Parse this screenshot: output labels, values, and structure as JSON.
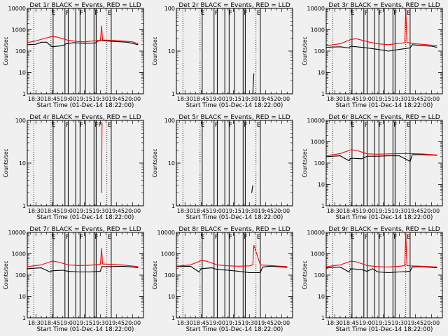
{
  "figure": {
    "background": "#f0f0f0",
    "ink_color": "#000000",
    "events_color": "#000000",
    "lld_color": "#ff0000"
  },
  "chart_data": [
    {
      "type": "line",
      "title": "Det 1r BLACK = Events, RED = LLD",
      "xlabel": "Start Time (01-Dec-14 18:22:00)",
      "ylabel": "Counts/sec",
      "x_ticks": [
        "18:30",
        "18:45",
        "19:00",
        "19:15",
        "19:30",
        "19:45",
        "20:00"
      ],
      "y_ticks": [
        "1",
        "10",
        "100",
        "1000",
        "10000"
      ],
      "ylim": [
        1,
        10000
      ],
      "y_scale": "log",
      "time_range": [
        "18:22",
        "20:10"
      ],
      "markers": [
        "E",
        "F",
        "F",
        "F",
        "E"
      ],
      "series": [
        {
          "color": "#000000",
          "x": [
            "18:22",
            "18:30",
            "18:35",
            "18:40",
            "18:43",
            "18:45",
            "18:55",
            "18:58",
            "19:05",
            "19:15",
            "19:25",
            "19:28",
            "19:30",
            "19:35",
            "19:45",
            "19:55",
            "20:05"
          ],
          "y": [
            200,
            210,
            260,
            260,
            190,
            160,
            180,
            220,
            250,
            230,
            240,
            300,
            310,
            300,
            280,
            260,
            200
          ]
        },
        {
          "color": "#ff0000",
          "x": [
            "18:22",
            "18:30",
            "18:40",
            "18:45",
            "18:50",
            "18:55",
            "19:00",
            "19:10",
            "19:15",
            "19:20",
            "19:30",
            "19:31",
            "19:32",
            "19:40",
            "19:50",
            "20:00",
            "20:05"
          ],
          "y": [
            250,
            300,
            420,
            480,
            450,
            380,
            320,
            280,
            270,
            290,
            320,
            1500,
            330,
            320,
            300,
            270,
            220
          ]
        }
      ]
    },
    {
      "type": "line",
      "title": "Det 2r BLACK = Events, RED = LLD",
      "xlabel": "Start Time (01-Dec-14 18:22:00)",
      "ylabel": "Counts/sec",
      "x_ticks": [
        "18:30",
        "18:45",
        "19:00",
        "19:15",
        "19:30",
        "19:45",
        "20:00"
      ],
      "y_ticks": [
        "1",
        "10",
        "100"
      ],
      "ylim": [
        1,
        100
      ],
      "y_scale": "log",
      "time_range": [
        "18:22",
        "20:10"
      ],
      "markers": [
        "E",
        "F",
        "F",
        "F",
        "E"
      ],
      "series": [
        {
          "color": "#000000",
          "x": [
            "19:33",
            "19:34"
          ],
          "y": [
            1,
            3
          ]
        }
      ]
    },
    {
      "type": "line",
      "title": "Det 3r BLACK = Events, RED = LLD",
      "xlabel": "Start Time (01-Dec-14 18:22:00)",
      "ylabel": "Counts/sec",
      "x_ticks": [
        "18:30",
        "18:45",
        "19:00",
        "19:15",
        "19:30",
        "19:45",
        "20:00"
      ],
      "y_ticks": [
        "1",
        "10",
        "100",
        "1000",
        "10000"
      ],
      "ylim": [
        1,
        10000
      ],
      "y_scale": "log",
      "time_range": [
        "18:22",
        "20:10"
      ],
      "markers": [
        "E",
        "F",
        "F",
        "F",
        "E"
      ],
      "series": [
        {
          "color": "#000000",
          "x": [
            "18:22",
            "18:35",
            "18:43",
            "18:45",
            "18:55",
            "19:00",
            "19:10",
            "19:20",
            "19:30",
            "19:40",
            "19:42",
            "19:50",
            "20:00",
            "20:05"
          ],
          "y": [
            150,
            160,
            140,
            170,
            150,
            140,
            120,
            100,
            120,
            140,
            200,
            180,
            170,
            150
          ]
        },
        {
          "color": "#ff0000",
          "x": [
            "18:22",
            "18:35",
            "18:45",
            "18:50",
            "19:00",
            "19:10",
            "19:20",
            "19:30",
            "19:35",
            "19:36",
            "19:37",
            "19:40",
            "19:45",
            "19:55",
            "20:05"
          ],
          "y": [
            180,
            220,
            350,
            380,
            280,
            220,
            200,
            230,
            250,
            10000,
            260,
            240,
            220,
            200,
            180
          ]
        }
      ]
    },
    {
      "type": "line",
      "title": "Det 4r BLACK = Events, RED = LLD",
      "xlabel": "Start Time (01-Dec-14 18:22:00)",
      "ylabel": "Counts/sec",
      "x_ticks": [
        "18:30",
        "18:45",
        "19:00",
        "19:15",
        "19:30",
        "19:45",
        "20:00"
      ],
      "y_ticks": [
        "1",
        "10",
        "100"
      ],
      "ylim": [
        1,
        100
      ],
      "y_scale": "log",
      "time_range": [
        "18:22",
        "20:10"
      ],
      "markers": [
        "E",
        "F",
        "F",
        "FF",
        "E"
      ],
      "series": [
        {
          "color": "#ff0000",
          "x": [
            "19:31",
            "19:31.5"
          ],
          "y": [
            2,
            90
          ]
        }
      ]
    },
    {
      "type": "line",
      "title": "Det 5r BLACK = Events, RED = LLD",
      "xlabel": "Start Time (01-Dec-14 18:22:00)",
      "ylabel": "Counts/sec",
      "x_ticks": [
        "18:30",
        "18:45",
        "19:00",
        "19:15",
        "19:30",
        "19:45",
        "20:00"
      ],
      "y_ticks": [
        "1",
        "10",
        "100"
      ],
      "ylim": [
        1,
        100
      ],
      "y_scale": "log",
      "time_range": [
        "18:22",
        "20:10"
      ],
      "markers": [
        "E",
        "F",
        "F",
        "F",
        "E"
      ],
      "series": [
        {
          "color": "#000000",
          "x": [
            "19:32",
            "19:33"
          ],
          "y": [
            2,
            3
          ]
        }
      ]
    },
    {
      "type": "line",
      "title": "Det 6r BLACK = Events, RED = LLD",
      "xlabel": "Start Time (01-Dec-14 18:22:00)",
      "ylabel": "Counts/sec",
      "x_ticks": [
        "18:30",
        "18:45",
        "19:00",
        "19:15",
        "19:30",
        "19:45",
        "20:00"
      ],
      "y_ticks": [
        "1",
        "10",
        "100",
        "1000",
        "10000"
      ],
      "ylim": [
        1,
        10000
      ],
      "y_scale": "log",
      "time_range": [
        "18:22",
        "20:10"
      ],
      "markers": [
        "E",
        "F",
        "F",
        "F",
        "E"
      ],
      "series": [
        {
          "color": "#000000",
          "x": [
            "18:22",
            "18:35",
            "18:43",
            "18:45",
            "18:55",
            "19:00",
            "19:10",
            "19:20",
            "19:30",
            "19:40",
            "19:42",
            "19:50",
            "20:00",
            "20:05"
          ],
          "y": [
            200,
            220,
            130,
            170,
            160,
            210,
            210,
            220,
            220,
            120,
            250,
            250,
            240,
            230
          ]
        },
        {
          "color": "#ff0000",
          "x": [
            "18:22",
            "18:35",
            "18:45",
            "18:50",
            "19:00",
            "19:10",
            "19:20",
            "19:30",
            "19:40",
            "19:50",
            "20:05"
          ],
          "y": [
            220,
            280,
            420,
            400,
            270,
            260,
            270,
            280,
            280,
            270,
            240
          ]
        }
      ]
    },
    {
      "type": "line",
      "title": "Det 7r BLACK = Events, RED = LLD",
      "xlabel": "Start Time (01-Dec-14 18:22:00)",
      "ylabel": "Counts/sec",
      "x_ticks": [
        "18:30",
        "18:45",
        "19:00",
        "19:15",
        "19:30",
        "19:45",
        "20:00"
      ],
      "y_ticks": [
        "1",
        "10",
        "100",
        "1000",
        "10000"
      ],
      "ylim": [
        1,
        10000
      ],
      "y_scale": "log",
      "time_range": [
        "18:22",
        "20:10"
      ],
      "markers": [
        "E",
        "F",
        "F",
        "F",
        "E"
      ],
      "series": [
        {
          "color": "#000000",
          "x": [
            "18:22",
            "18:35",
            "18:43",
            "18:45",
            "18:55",
            "19:00",
            "19:10",
            "19:20",
            "19:30",
            "19:31",
            "19:40",
            "19:50",
            "20:00",
            "20:05"
          ],
          "y": [
            200,
            220,
            140,
            160,
            170,
            150,
            140,
            140,
            150,
            250,
            250,
            260,
            240,
            220
          ]
        },
        {
          "color": "#ff0000",
          "x": [
            "18:22",
            "18:35",
            "18:45",
            "18:50",
            "19:00",
            "19:10",
            "19:20",
            "19:30",
            "19:31",
            "19:32",
            "19:40",
            "19:50",
            "20:05"
          ],
          "y": [
            250,
            300,
            450,
            420,
            300,
            280,
            290,
            320,
            1800,
            330,
            320,
            300,
            250
          ]
        }
      ]
    },
    {
      "type": "line",
      "title": "Det 8r BLACK = Events, RED = LLD",
      "xlabel": "Start Time (01-Dec-14 18:22:00)",
      "ylabel": "Counts/sec",
      "x_ticks": [
        "18:30",
        "18:45",
        "19:00",
        "19:15",
        "19:30",
        "19:45",
        "20:00"
      ],
      "y_ticks": [
        "1",
        "10",
        "100",
        "1000",
        "10000"
      ],
      "ylim": [
        1,
        10000
      ],
      "y_scale": "log",
      "time_range": [
        "18:22",
        "20:10"
      ],
      "markers": [
        "E",
        "F",
        "F",
        "F",
        "E"
      ],
      "series": [
        {
          "color": "#000000",
          "x": [
            "18:22",
            "18:35",
            "18:43",
            "18:45",
            "18:55",
            "19:00",
            "19:10",
            "19:20",
            "19:30",
            "19:40",
            "19:42",
            "19:50",
            "20:00",
            "20:05"
          ],
          "y": [
            250,
            260,
            140,
            200,
            220,
            180,
            170,
            150,
            130,
            130,
            240,
            260,
            240,
            230
          ]
        },
        {
          "color": "#ff0000",
          "x": [
            "18:22",
            "18:35",
            "18:45",
            "18:50",
            "19:00",
            "19:10",
            "19:20",
            "19:30",
            "19:33",
            "19:34",
            "19:40",
            "19:50",
            "20:05"
          ],
          "y": [
            260,
            300,
            480,
            450,
            300,
            270,
            260,
            270,
            300,
            2500,
            300,
            280,
            250
          ]
        }
      ]
    },
    {
      "type": "line",
      "title": "Det 9r BLACK = Events, RED = LLD",
      "xlabel": "Start Time (01-Dec-14 18:22:00)",
      "ylabel": "Counts/sec",
      "x_ticks": [
        "18:30",
        "18:45",
        "19:00",
        "19:15",
        "19:30",
        "19:45",
        "20:00"
      ],
      "y_ticks": [
        "1",
        "10",
        "100",
        "1000",
        "10000"
      ],
      "ylim": [
        1,
        10000
      ],
      "y_scale": "log",
      "time_range": [
        "18:22",
        "20:10"
      ],
      "markers": [
        "E",
        "F",
        "F",
        "F",
        "E"
      ],
      "series": [
        {
          "color": "#000000",
          "x": [
            "18:22",
            "18:35",
            "18:43",
            "18:45",
            "18:55",
            "19:00",
            "19:05",
            "19:10",
            "19:20",
            "19:30",
            "19:40",
            "19:42",
            "19:50",
            "20:00",
            "20:05"
          ],
          "y": [
            220,
            240,
            140,
            200,
            180,
            150,
            200,
            140,
            130,
            140,
            150,
            240,
            250,
            230,
            220
          ]
        },
        {
          "color": "#ff0000",
          "x": [
            "18:22",
            "18:35",
            "18:45",
            "18:50",
            "19:00",
            "19:10",
            "19:20",
            "19:30",
            "19:35",
            "19:36",
            "19:37",
            "19:40",
            "19:50",
            "20:05"
          ],
          "y": [
            250,
            300,
            450,
            420,
            280,
            250,
            240,
            260,
            280,
            10000,
            280,
            270,
            260,
            240
          ]
        }
      ]
    }
  ]
}
